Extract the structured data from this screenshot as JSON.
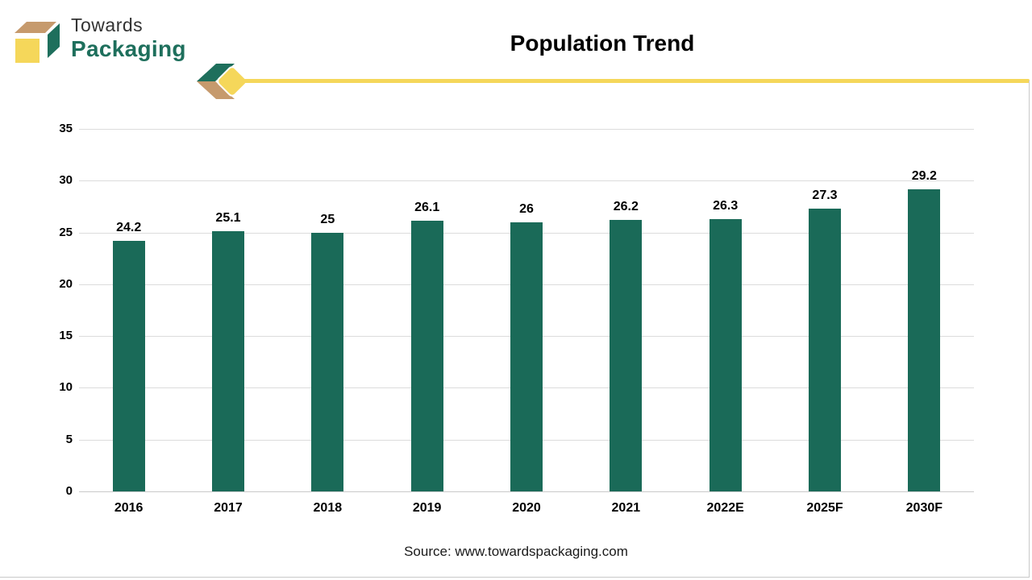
{
  "logo": {
    "line1": "Towards",
    "line2": "Packaging",
    "icon": "3d-box-logo-icon"
  },
  "header": {
    "title": "Population Trend"
  },
  "footer": {
    "source": "Source: www.towardspackaging.com"
  },
  "colors": {
    "brand-green": "#1E6F5C",
    "brand-tan": "#C69A6D",
    "brand-yellow": "#F5D75A",
    "bar-teal": "#1A6A58",
    "grid-gray": "#DCDCDC",
    "axis-gray": "#C9C9C9",
    "text-dark": "#1A1A1A"
  },
  "chart_data": {
    "type": "bar",
    "title": "Population Trend",
    "categories": [
      "2016",
      "2017",
      "2018",
      "2019",
      "2020",
      "2021",
      "2022E",
      "2025F",
      "2030F"
    ],
    "values": [
      24.2,
      25.1,
      25,
      26.1,
      26,
      26.2,
      26.3,
      27.3,
      29.2
    ],
    "value_labels": [
      "24.2",
      "25.1",
      "25",
      "26.1",
      "26",
      "26.2",
      "26.3",
      "27.3",
      "29.2"
    ],
    "xlabel": "",
    "ylabel": "",
    "ylim": [
      0,
      35
    ],
    "yticks": [
      0,
      5,
      10,
      15,
      20,
      25,
      30,
      35
    ],
    "grid": true,
    "legend": false,
    "bar_color": "#1A6A58"
  }
}
